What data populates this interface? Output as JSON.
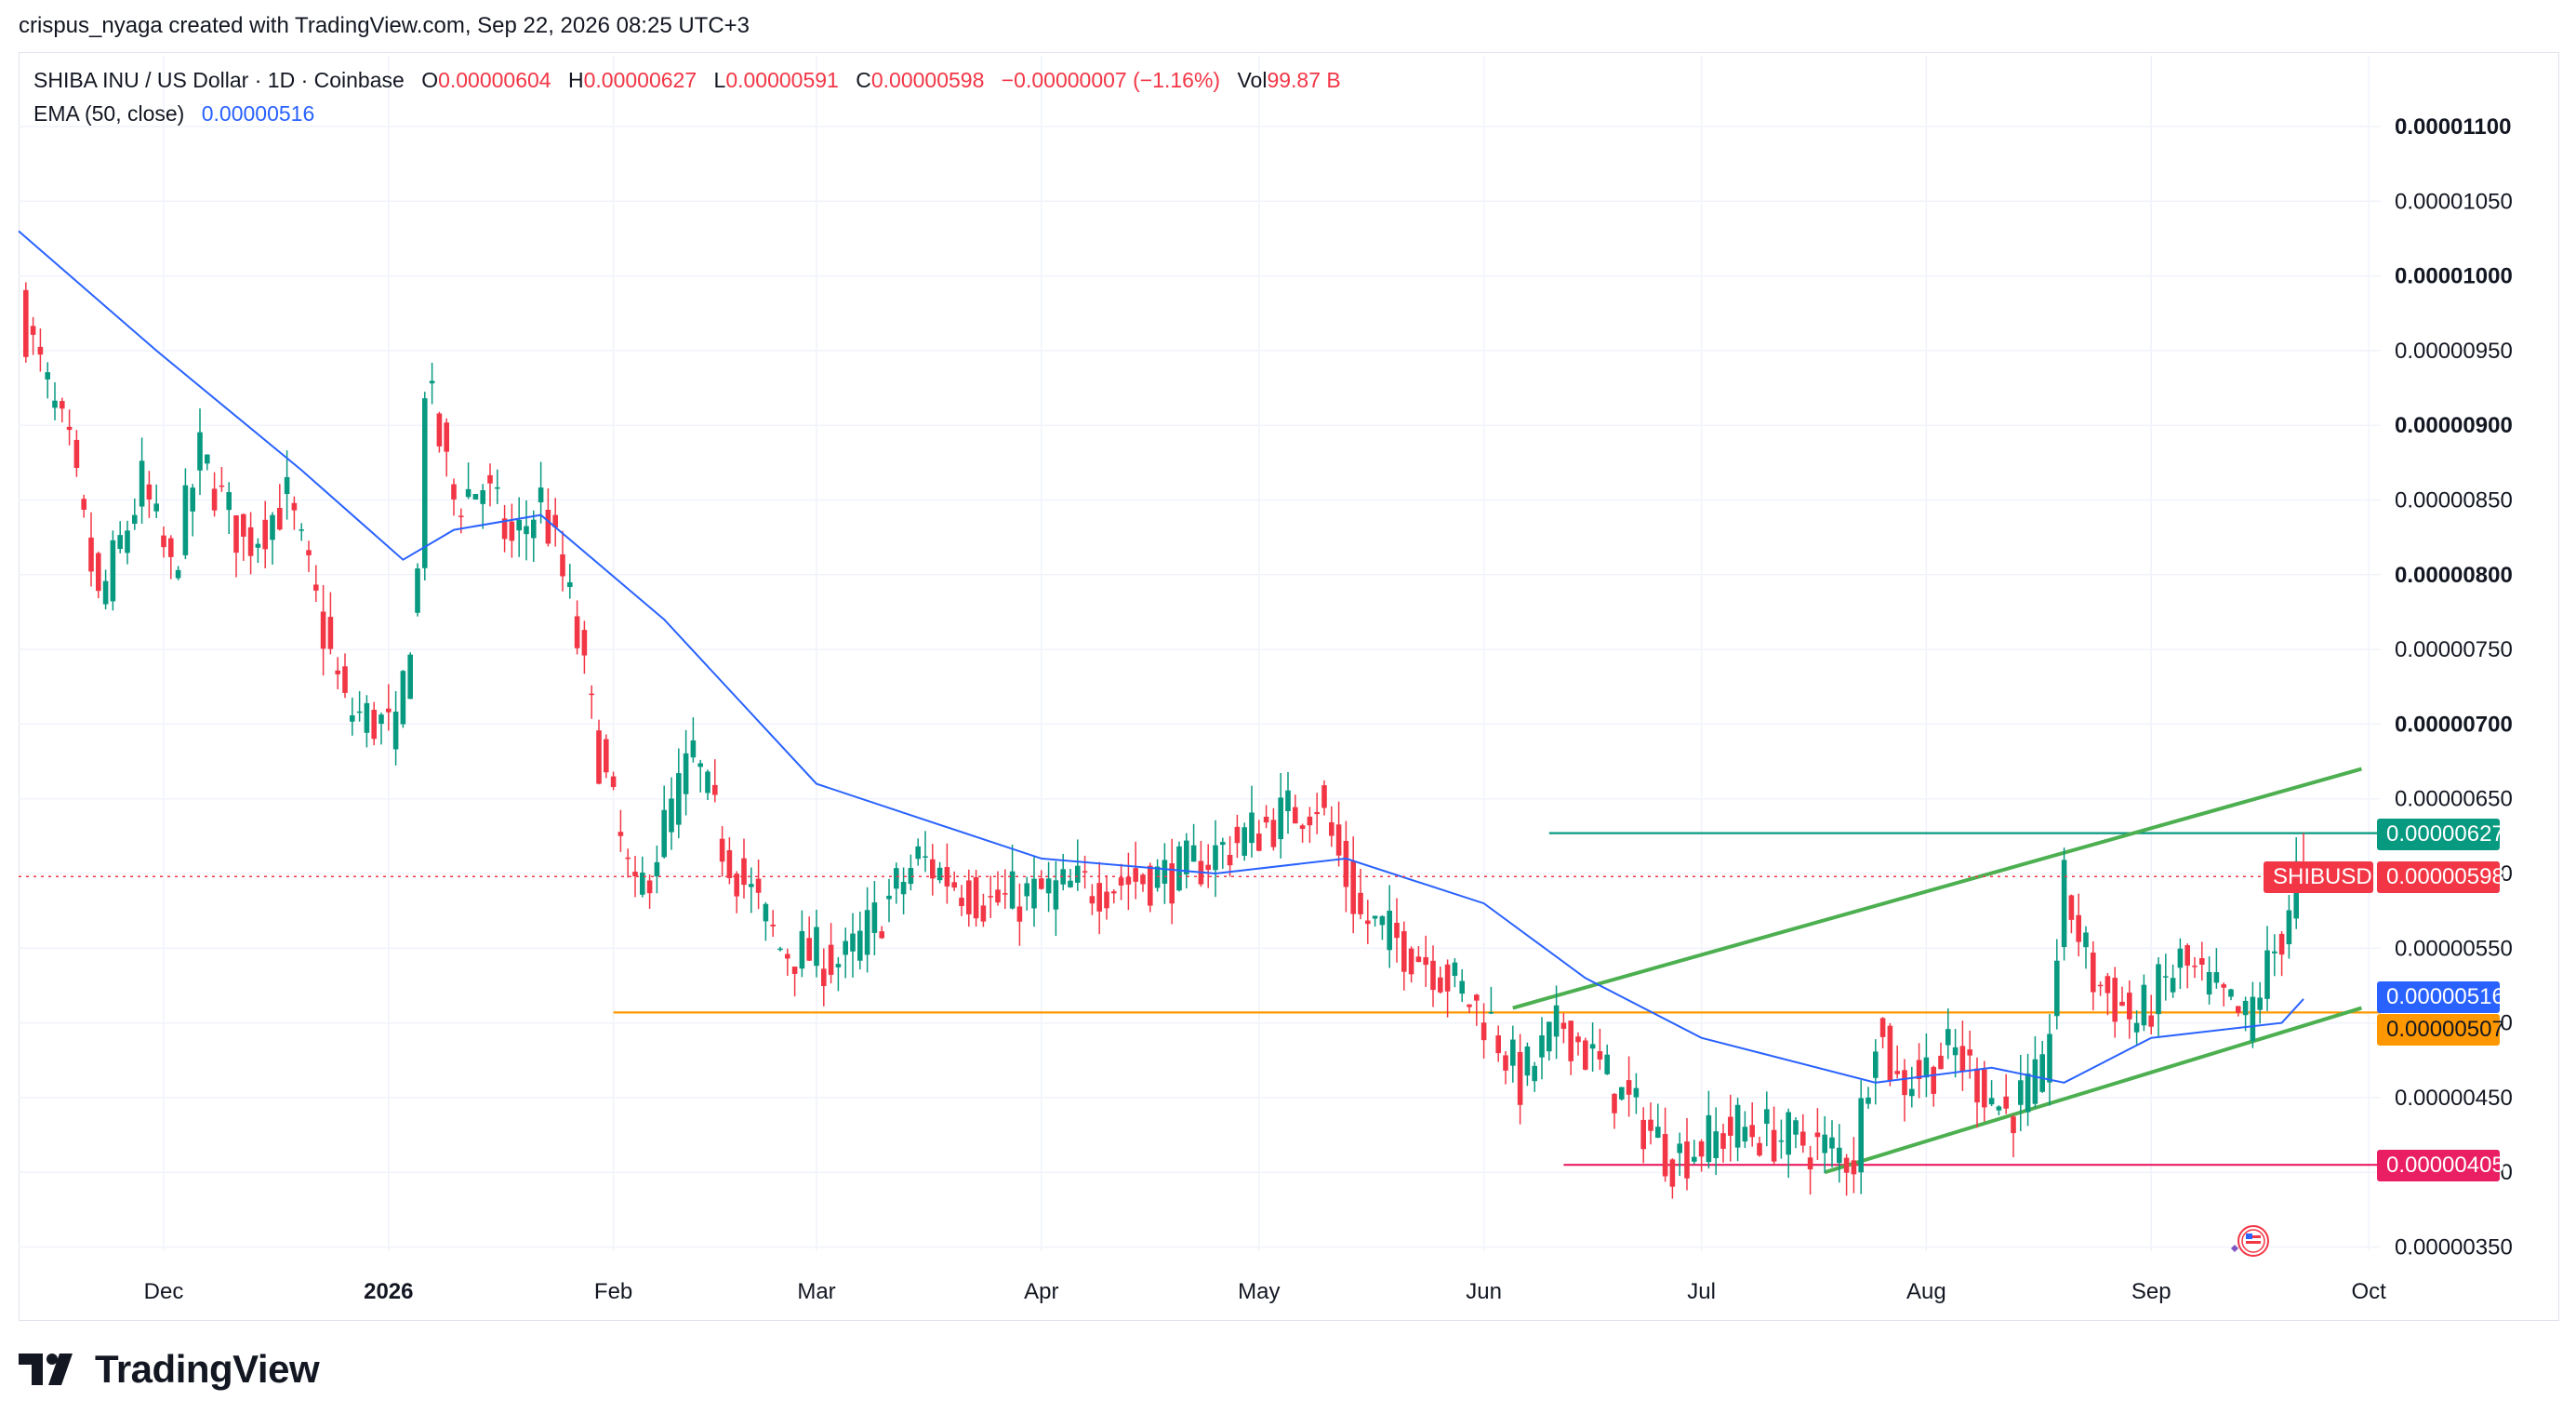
{
  "header": {
    "attribution": "crispus_nyaga created with TradingView.com, Sep 22, 2026 08:25 UTC+3"
  },
  "legend": {
    "symbol": "SHIBA INU / US Dollar · 1D · Coinbase",
    "open_label": "O",
    "open": "0.00000604",
    "high_label": "H",
    "high": "0.00000627",
    "low_label": "L",
    "low": "0.00000591",
    "close_label": "C",
    "close": "0.00000598",
    "change": "−0.00000007 (−1.16%)",
    "vol_label": "Vol",
    "vol": "99.87 B",
    "ema_label": "EMA (50, close)",
    "ema_value": "0.00000516"
  },
  "price_tags": {
    "resistance": "0.00000627",
    "symbol_tag": "SHIBUSD",
    "last_price": "0.00000598",
    "ema": "0.00000516",
    "support": "0.00000507",
    "low": "0.00000405"
  },
  "branding": {
    "name": "TradingView"
  },
  "colors": {
    "up": "#089981",
    "down": "#f23645",
    "ema": "#2962ff",
    "support_line": "#ff9800",
    "channel": "#4caf50",
    "low_line": "#e91e63",
    "resistance_line": "#089981"
  },
  "chart_data": {
    "type": "candlestick",
    "symbol": "SHIBA INU / US Dollar",
    "interval": "1D",
    "exchange": "Coinbase",
    "x_ticks": [
      "Dec",
      "2026",
      "Feb",
      "Mar",
      "Apr",
      "May",
      "Jun",
      "Jul",
      "Aug",
      "Sep",
      "Oct"
    ],
    "y_ticks": [
      "0.00001100",
      "0.00001050",
      "0.00001000",
      "0.00000950",
      "0.00000900",
      "0.00000850",
      "0.00000800",
      "0.00000750",
      "0.00000700",
      "0.00000650",
      "0.00000600",
      "0.00000550",
      "0.00000500",
      "0.00000450",
      "0.00000400",
      "0.00000350"
    ],
    "ylim": [
      3.4e-06,
      1.12e-05
    ],
    "bold_ticks": [
      "0.00001100",
      "0.00001000",
      "0.00000900",
      "0.00000800",
      "0.00000700"
    ],
    "series_close_anchors": [
      {
        "date": "2025-11-11",
        "close": 9.8e-06
      },
      {
        "date": "2025-11-18",
        "close": 8.8e-06
      },
      {
        "date": "2025-11-22",
        "close": 7.8e-06
      },
      {
        "date": "2025-11-28",
        "close": 8.6e-06
      },
      {
        "date": "2025-12-02",
        "close": 8e-06
      },
      {
        "date": "2025-12-06",
        "close": 8.8e-06
      },
      {
        "date": "2025-12-12",
        "close": 8.2e-06
      },
      {
        "date": "2025-12-18",
        "close": 8.5e-06
      },
      {
        "date": "2025-12-26",
        "close": 7.1e-06
      },
      {
        "date": "2025-12-31",
        "close": 7e-06
      },
      {
        "date": "2026-01-02",
        "close": 6.9e-06
      },
      {
        "date": "2026-01-05",
        "close": 8e-06
      },
      {
        "date": "2026-01-06",
        "close": 9.3e-06
      },
      {
        "date": "2026-01-10",
        "close": 8.5e-06
      },
      {
        "date": "2026-01-14",
        "close": 8.6e-06
      },
      {
        "date": "2026-01-18",
        "close": 8.2e-06
      },
      {
        "date": "2026-01-22",
        "close": 8.5e-06
      },
      {
        "date": "2026-01-26",
        "close": 7.8e-06
      },
      {
        "date": "2026-01-30",
        "close": 6.8e-06
      },
      {
        "date": "2026-02-04",
        "close": 5.8e-06
      },
      {
        "date": "2026-02-08",
        "close": 6.3e-06
      },
      {
        "date": "2026-02-12",
        "close": 6.8e-06
      },
      {
        "date": "2026-02-16",
        "close": 6.2e-06
      },
      {
        "date": "2026-02-24",
        "close": 5.5e-06
      },
      {
        "date": "2026-03-05",
        "close": 5.4e-06
      },
      {
        "date": "2026-03-15",
        "close": 6.1e-06
      },
      {
        "date": "2026-03-25",
        "close": 5.8e-06
      },
      {
        "date": "2026-04-05",
        "close": 5.9e-06
      },
      {
        "date": "2026-04-20",
        "close": 6e-06
      },
      {
        "date": "2026-05-01",
        "close": 6.3e-06
      },
      {
        "date": "2026-05-09",
        "close": 6.5e-06
      },
      {
        "date": "2026-05-15",
        "close": 5.7e-06
      },
      {
        "date": "2026-05-25",
        "close": 5.4e-06
      },
      {
        "date": "2026-06-02",
        "close": 5e-06
      },
      {
        "date": "2026-06-06",
        "close": 4.6e-06
      },
      {
        "date": "2026-06-12",
        "close": 5e-06
      },
      {
        "date": "2026-06-20",
        "close": 4.5e-06
      },
      {
        "date": "2026-06-27",
        "close": 4.1e-06
      },
      {
        "date": "2026-07-06",
        "close": 4.3e-06
      },
      {
        "date": "2026-07-15",
        "close": 4.2e-06
      },
      {
        "date": "2026-07-22",
        "close": 4.1e-06
      },
      {
        "date": "2026-07-25",
        "close": 5e-06
      },
      {
        "date": "2026-07-28",
        "close": 4.6e-06
      },
      {
        "date": "2026-08-05",
        "close": 4.8e-06
      },
      {
        "date": "2026-08-12",
        "close": 4.4e-06
      },
      {
        "date": "2026-08-17",
        "close": 4.6e-06
      },
      {
        "date": "2026-08-20",
        "close": 5.9e-06
      },
      {
        "date": "2026-08-24",
        "close": 5.3e-06
      },
      {
        "date": "2026-08-30",
        "close": 5e-06
      },
      {
        "date": "2026-09-05",
        "close": 5.4e-06
      },
      {
        "date": "2026-09-14",
        "close": 5e-06
      },
      {
        "date": "2026-09-19",
        "close": 5.6e-06
      },
      {
        "date": "2026-09-21",
        "close": 6e-06
      },
      {
        "date": "2026-09-22",
        "close": 5.98e-06
      }
    ],
    "ema_anchors": [
      {
        "date": "2025-11-11",
        "value": 1.03e-05
      },
      {
        "date": "2025-11-30",
        "value": 9.5e-06
      },
      {
        "date": "2025-12-20",
        "value": 8.7e-06
      },
      {
        "date": "2026-01-03",
        "value": 8.1e-06
      },
      {
        "date": "2026-01-10",
        "value": 8.3e-06
      },
      {
        "date": "2026-01-22",
        "value": 8.4e-06
      },
      {
        "date": "2026-02-08",
        "value": 7.7e-06
      },
      {
        "date": "2026-03-01",
        "value": 6.6e-06
      },
      {
        "date": "2026-04-01",
        "value": 6.1e-06
      },
      {
        "date": "2026-04-25",
        "value": 6e-06
      },
      {
        "date": "2026-05-13",
        "value": 6.1e-06
      },
      {
        "date": "2026-06-01",
        "value": 5.8e-06
      },
      {
        "date": "2026-06-15",
        "value": 5.3e-06
      },
      {
        "date": "2026-07-01",
        "value": 4.9e-06
      },
      {
        "date": "2026-07-25",
        "value": 4.6e-06
      },
      {
        "date": "2026-08-10",
        "value": 4.7e-06
      },
      {
        "date": "2026-08-20",
        "value": 4.6e-06
      },
      {
        "date": "2026-09-01",
        "value": 4.9e-06
      },
      {
        "date": "2026-09-19",
        "value": 5e-06
      },
      {
        "date": "2026-09-22",
        "value": 5.16e-06
      }
    ],
    "drawings": [
      {
        "kind": "horizontal",
        "name": "support",
        "price": 5.07e-06,
        "from": "2026-02-01",
        "color": "#ff9800"
      },
      {
        "kind": "horizontal",
        "name": "resistance",
        "price": 6.27e-06,
        "from": "2026-06-10",
        "color": "#089981"
      },
      {
        "kind": "horizontal",
        "name": "low",
        "price": 4.05e-06,
        "from": "2026-06-12",
        "color": "#e91e63"
      },
      {
        "kind": "trend",
        "name": "channel-upper",
        "from": {
          "date": "2026-06-05",
          "price": 5.1e-06
        },
        "to": {
          "date": "2026-09-30",
          "price": 6.7e-06
        },
        "color": "#4caf50"
      },
      {
        "kind": "trend",
        "name": "channel-lower",
        "from": {
          "date": "2026-07-18",
          "price": 4e-06
        },
        "to": {
          "date": "2026-09-30",
          "price": 5.1e-06
        },
        "color": "#4caf50"
      }
    ],
    "last_price": 5.98e-06
  }
}
